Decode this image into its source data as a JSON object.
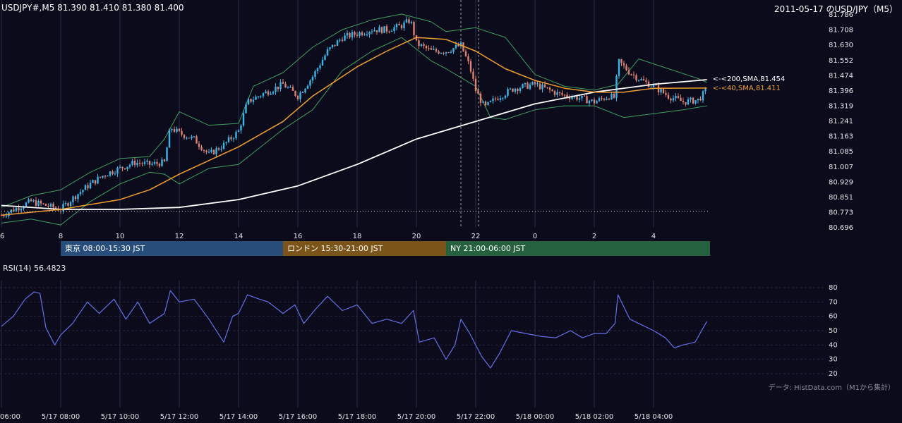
{
  "header": {
    "ohlc": "USDJPY#,M5 81.390 81.410 81.380 81.400",
    "title": "2011-05-17 のUSD/JPY（M5）"
  },
  "sessions": [
    {
      "label": "東京 08:00-15:30 JST",
      "color": "#274d7a"
    },
    {
      "label": "ロンドン 15:30-21:00 JST",
      "color": "#7a5418"
    },
    {
      "label": "NY 21:00-06:00 JST",
      "color": "#25603f"
    }
  ],
  "rsi_label": "RSI(14) 56.4823",
  "credit": "データ: HistData.com（M1から集計）",
  "colors": {
    "background": "#0b0b1c",
    "bull": "#3ab7e8",
    "bear": "#e08272",
    "sma200": "#ffffff",
    "sma40": "#f0a030",
    "bollinger": "#3fa060",
    "rsi": "#6670e8",
    "session_marker": "#a0a0a0"
  },
  "chart_data": [
    {
      "type": "candlestick",
      "symbol": "USDJPY",
      "timeframe": "M5",
      "x_tick_labels": [
        "6",
        "8",
        "10",
        "12",
        "14",
        "16",
        "18",
        "20",
        "22",
        "0",
        "2",
        "4"
      ],
      "y_tick_labels": [
        "81.786",
        "81.708",
        "81.630",
        "81.552",
        "81.474",
        "81.396",
        "81.319",
        "81.241",
        "81.163",
        "81.085",
        "81.007",
        "80.929",
        "80.851",
        "80.773",
        "80.696"
      ],
      "ylim": [
        80.696,
        81.786
      ],
      "close_path": [
        [
          6.0,
          80.76
        ],
        [
          7.0,
          80.83
        ],
        [
          8.0,
          80.79
        ],
        [
          8.5,
          80.86
        ],
        [
          9.0,
          80.92
        ],
        [
          9.5,
          80.97
        ],
        [
          10.0,
          81.0
        ],
        [
          10.5,
          81.03
        ],
        [
          11.0,
          81.02
        ],
        [
          11.5,
          81.03
        ],
        [
          11.7,
          81.21
        ],
        [
          12.0,
          81.18
        ],
        [
          12.5,
          81.15
        ],
        [
          13.0,
          81.07
        ],
        [
          13.5,
          81.12
        ],
        [
          14.0,
          81.19
        ],
        [
          14.3,
          81.34
        ],
        [
          14.8,
          81.38
        ],
        [
          15.5,
          81.43
        ],
        [
          16.0,
          81.37
        ],
        [
          16.5,
          81.47
        ],
        [
          17.0,
          81.6
        ],
        [
          17.5,
          81.67
        ],
        [
          18.0,
          81.69
        ],
        [
          18.5,
          81.71
        ],
        [
          19.0,
          81.71
        ],
        [
          19.5,
          81.73
        ],
        [
          19.8,
          81.76
        ],
        [
          20.0,
          81.64
        ],
        [
          20.5,
          81.6
        ],
        [
          21.0,
          81.6
        ],
        [
          21.5,
          81.63
        ],
        [
          21.8,
          81.52
        ],
        [
          22.0,
          81.4
        ],
        [
          22.3,
          81.31
        ],
        [
          22.7,
          81.36
        ],
        [
          23.3,
          81.41
        ],
        [
          24.0,
          81.43
        ],
        [
          24.8,
          81.38
        ],
        [
          25.5,
          81.36
        ],
        [
          26.0,
          81.34
        ],
        [
          26.5,
          81.37
        ],
        [
          26.7,
          81.36
        ],
        [
          26.8,
          81.55
        ],
        [
          27.2,
          81.49
        ],
        [
          27.6,
          81.45
        ],
        [
          28.0,
          81.42
        ],
        [
          28.5,
          81.37
        ],
        [
          29.0,
          81.34
        ],
        [
          29.5,
          81.35
        ],
        [
          29.8,
          81.4
        ]
      ],
      "overlays": [
        {
          "name": "200,SMA",
          "label": "<-<200,SMA,81.454",
          "last": 81.454,
          "path": [
            [
              6.0,
              80.81
            ],
            [
              8.0,
              80.79
            ],
            [
              10.0,
              80.79
            ],
            [
              12.0,
              80.8
            ],
            [
              14.0,
              80.84
            ],
            [
              16.0,
              80.91
            ],
            [
              18.0,
              81.02
            ],
            [
              20.0,
              81.15
            ],
            [
              22.0,
              81.24
            ],
            [
              24.0,
              81.33
            ],
            [
              26.0,
              81.39
            ],
            [
              28.0,
              81.43
            ],
            [
              29.8,
              81.454
            ]
          ]
        },
        {
          "name": "40,SMA",
          "label": "<-<40,SMA,81.411",
          "last": 81.411,
          "path": [
            [
              6.0,
              80.76
            ],
            [
              8.0,
              80.79
            ],
            [
              10.0,
              80.84
            ],
            [
              11.0,
              80.89
            ],
            [
              12.0,
              80.97
            ],
            [
              14.0,
              81.11
            ],
            [
              15.5,
              81.24
            ],
            [
              16.5,
              81.37
            ],
            [
              18.0,
              81.52
            ],
            [
              19.0,
              81.6
            ],
            [
              20.0,
              81.67
            ],
            [
              21.0,
              81.66
            ],
            [
              22.0,
              81.6
            ],
            [
              23.0,
              81.51
            ],
            [
              24.0,
              81.45
            ],
            [
              25.0,
              81.41
            ],
            [
              26.0,
              81.39
            ],
            [
              27.0,
              81.39
            ],
            [
              28.0,
              81.41
            ],
            [
              29.8,
              81.411
            ]
          ]
        }
      ],
      "bollinger_upper": [
        [
          6.0,
          80.8
        ],
        [
          7.0,
          80.86
        ],
        [
          8.0,
          80.89
        ],
        [
          9.0,
          80.98
        ],
        [
          10.0,
          81.05
        ],
        [
          11.0,
          81.06
        ],
        [
          11.5,
          81.15
        ],
        [
          12.0,
          81.29
        ],
        [
          13.0,
          81.22
        ],
        [
          14.0,
          81.23
        ],
        [
          14.5,
          81.42
        ],
        [
          15.5,
          81.49
        ],
        [
          16.5,
          81.62
        ],
        [
          17.5,
          81.71
        ],
        [
          18.5,
          81.76
        ],
        [
          19.5,
          81.79
        ],
        [
          20.5,
          81.75
        ],
        [
          21.0,
          81.7
        ],
        [
          22.0,
          81.72
        ],
        [
          23.0,
          81.67
        ],
        [
          24.0,
          81.48
        ],
        [
          25.0,
          81.42
        ],
        [
          26.0,
          81.4
        ],
        [
          26.8,
          81.43
        ],
        [
          27.5,
          81.56
        ],
        [
          28.5,
          81.51
        ],
        [
          29.5,
          81.46
        ],
        [
          29.8,
          81.44
        ]
      ],
      "bollinger_lower": [
        [
          6.0,
          80.72
        ],
        [
          7.0,
          80.74
        ],
        [
          8.0,
          80.71
        ],
        [
          9.0,
          80.83
        ],
        [
          10.0,
          80.92
        ],
        [
          11.0,
          80.98
        ],
        [
          11.5,
          80.97
        ],
        [
          12.0,
          80.92
        ],
        [
          13.0,
          81.0
        ],
        [
          14.0,
          81.02
        ],
        [
          14.5,
          81.08
        ],
        [
          15.5,
          81.2
        ],
        [
          16.5,
          81.3
        ],
        [
          17.5,
          81.5
        ],
        [
          18.5,
          81.6
        ],
        [
          19.5,
          81.67
        ],
        [
          20.5,
          81.55
        ],
        [
          21.0,
          81.51
        ],
        [
          22.0,
          81.42
        ],
        [
          22.5,
          81.26
        ],
        [
          23.0,
          81.25
        ],
        [
          24.0,
          81.3
        ],
        [
          25.0,
          81.32
        ],
        [
          26.0,
          81.32
        ],
        [
          27.0,
          81.26
        ],
        [
          28.0,
          81.28
        ],
        [
          29.0,
          81.3
        ],
        [
          29.8,
          81.32
        ]
      ],
      "ny_session_level": 80.78,
      "session_markers_hours": [
        21.5,
        22.1
      ]
    },
    {
      "type": "line",
      "name": "RSI(14)",
      "last": 56.4823,
      "y_tick_labels": [
        "80",
        "70",
        "60",
        "50",
        "40",
        "30",
        "20"
      ],
      "ylim": [
        20,
        80
      ],
      "x_tick_labels": [
        "06:00",
        "5/17 08:00",
        "5/17 10:00",
        "5/17 12:00",
        "5/17 14:00",
        "5/17 16:00",
        "5/17 18:00",
        "5/17 20:00",
        "5/17 22:00",
        "5/18 00:00",
        "5/18 02:00",
        "5/18 04:00"
      ],
      "path": [
        [
          6.0,
          53
        ],
        [
          6.4,
          60
        ],
        [
          6.8,
          72
        ],
        [
          7.1,
          77
        ],
        [
          7.3,
          76
        ],
        [
          7.5,
          52
        ],
        [
          7.8,
          40
        ],
        [
          8.0,
          47
        ],
        [
          8.4,
          55
        ],
        [
          8.9,
          70
        ],
        [
          9.3,
          62
        ],
        [
          9.8,
          72
        ],
        [
          10.2,
          58
        ],
        [
          10.6,
          70
        ],
        [
          11.0,
          55
        ],
        [
          11.5,
          62
        ],
        [
          11.7,
          78
        ],
        [
          12.0,
          70
        ],
        [
          12.5,
          72
        ],
        [
          13.0,
          58
        ],
        [
          13.5,
          42
        ],
        [
          13.8,
          60
        ],
        [
          14.0,
          62
        ],
        [
          14.3,
          75
        ],
        [
          14.7,
          72
        ],
        [
          15.0,
          70
        ],
        [
          15.5,
          62
        ],
        [
          15.9,
          68
        ],
        [
          16.2,
          55
        ],
        [
          16.6,
          65
        ],
        [
          17.0,
          74
        ],
        [
          17.5,
          64
        ],
        [
          18.0,
          68
        ],
        [
          18.5,
          55
        ],
        [
          19.0,
          58
        ],
        [
          19.5,
          55
        ],
        [
          19.9,
          64
        ],
        [
          20.1,
          42
        ],
        [
          20.6,
          45
        ],
        [
          21.0,
          30
        ],
        [
          21.3,
          40
        ],
        [
          21.5,
          58
        ],
        [
          21.8,
          48
        ],
        [
          22.2,
          32
        ],
        [
          22.5,
          24
        ],
        [
          22.8,
          34
        ],
        [
          23.2,
          50
        ],
        [
          23.7,
          48
        ],
        [
          24.2,
          46
        ],
        [
          24.7,
          45
        ],
        [
          25.2,
          50
        ],
        [
          25.6,
          45
        ],
        [
          26.0,
          48
        ],
        [
          26.4,
          48
        ],
        [
          26.7,
          55
        ],
        [
          26.8,
          75
        ],
        [
          27.2,
          58
        ],
        [
          27.5,
          55
        ],
        [
          28.0,
          50
        ],
        [
          28.4,
          45
        ],
        [
          28.7,
          38
        ],
        [
          29.0,
          40
        ],
        [
          29.4,
          42
        ],
        [
          29.8,
          56.5
        ]
      ]
    }
  ]
}
